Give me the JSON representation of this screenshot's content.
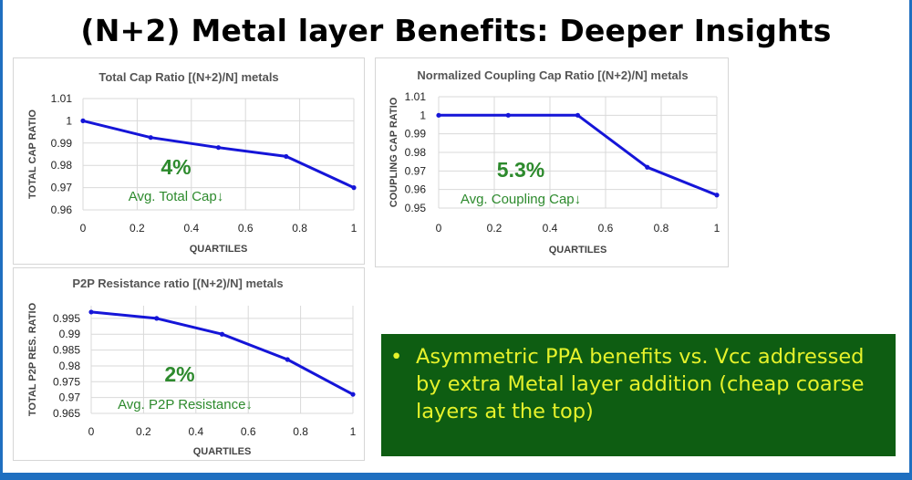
{
  "slide": {
    "title": "(N+2) Metal layer Benefits: Deeper Insights"
  },
  "callout": {
    "bullet": "•",
    "text": "Asymmetric PPA benefits vs. Vcc addressed by extra Metal layer addition (cheap coarse layers at the top)"
  },
  "colors": {
    "series": "#1515d8",
    "annotation": "#2d8a2d",
    "callout_bg": "#0e5d12",
    "callout_text": "#e6f22b",
    "frame": "#1f6fc0"
  },
  "chart_data": [
    {
      "type": "line",
      "title": "Total  Cap Ratio [(N+2)/N] metals",
      "xlabel": "QUARTILES",
      "ylabel": "TOTAL CAP RATIO",
      "x": [
        0,
        0.25,
        0.5,
        0.75,
        1
      ],
      "series": [
        {
          "values": [
            1.0,
            0.9925,
            0.988,
            0.984,
            0.97
          ]
        }
      ],
      "xticks": [
        "0",
        "0.2",
        "0.4",
        "0.6",
        "0.8",
        "1"
      ],
      "yticks": [
        "0.96",
        "0.97",
        "0.98",
        "0.99",
        "1",
        "1.01"
      ],
      "xlim": [
        0,
        1
      ],
      "ylim": [
        0.96,
        1.01
      ],
      "grid": true,
      "annotation": {
        "value": "4%",
        "label": "Avg. Total Cap↓"
      }
    },
    {
      "type": "line",
      "title": "Normalized Coupling Cap Ratio [(N+2)/N] metals",
      "xlabel": "QUARTILES",
      "ylabel": "COUPLING CAP RATIO",
      "x": [
        0,
        0.25,
        0.5,
        0.75,
        1
      ],
      "series": [
        {
          "values": [
            1.0,
            1.0,
            1.0,
            0.972,
            0.957
          ]
        }
      ],
      "xticks": [
        "0",
        "0.2",
        "0.4",
        "0.6",
        "0.8",
        "1"
      ],
      "yticks": [
        "0.95",
        "0.96",
        "0.97",
        "0.98",
        "0.99",
        "1",
        "1.01"
      ],
      "xlim": [
        0,
        1
      ],
      "ylim": [
        0.95,
        1.01
      ],
      "grid": true,
      "annotation": {
        "value": "5.3%",
        "label": "Avg. Coupling Cap↓"
      }
    },
    {
      "type": "line",
      "title": "P2P Resistance ratio [(N+2)/N] metals",
      "xlabel": "QUARTILES",
      "ylabel": "TOTAL P2P RES. RATIO",
      "x": [
        0,
        0.25,
        0.5,
        0.75,
        1
      ],
      "series": [
        {
          "values": [
            0.997,
            0.995,
            0.99,
            0.982,
            0.971
          ]
        }
      ],
      "xticks": [
        "0",
        "0.2",
        "0.4",
        "0.6",
        "0.8",
        "1"
      ],
      "yticks": [
        "0.965",
        "0.97",
        "0.975",
        "0.98",
        "0.985",
        "0.99",
        "0.995"
      ],
      "xlim": [
        0,
        1
      ],
      "ylim": [
        0.965,
        0.999
      ],
      "grid": true,
      "annotation": {
        "value": "2%",
        "label": "Avg. P2P Resistance↓"
      }
    }
  ]
}
